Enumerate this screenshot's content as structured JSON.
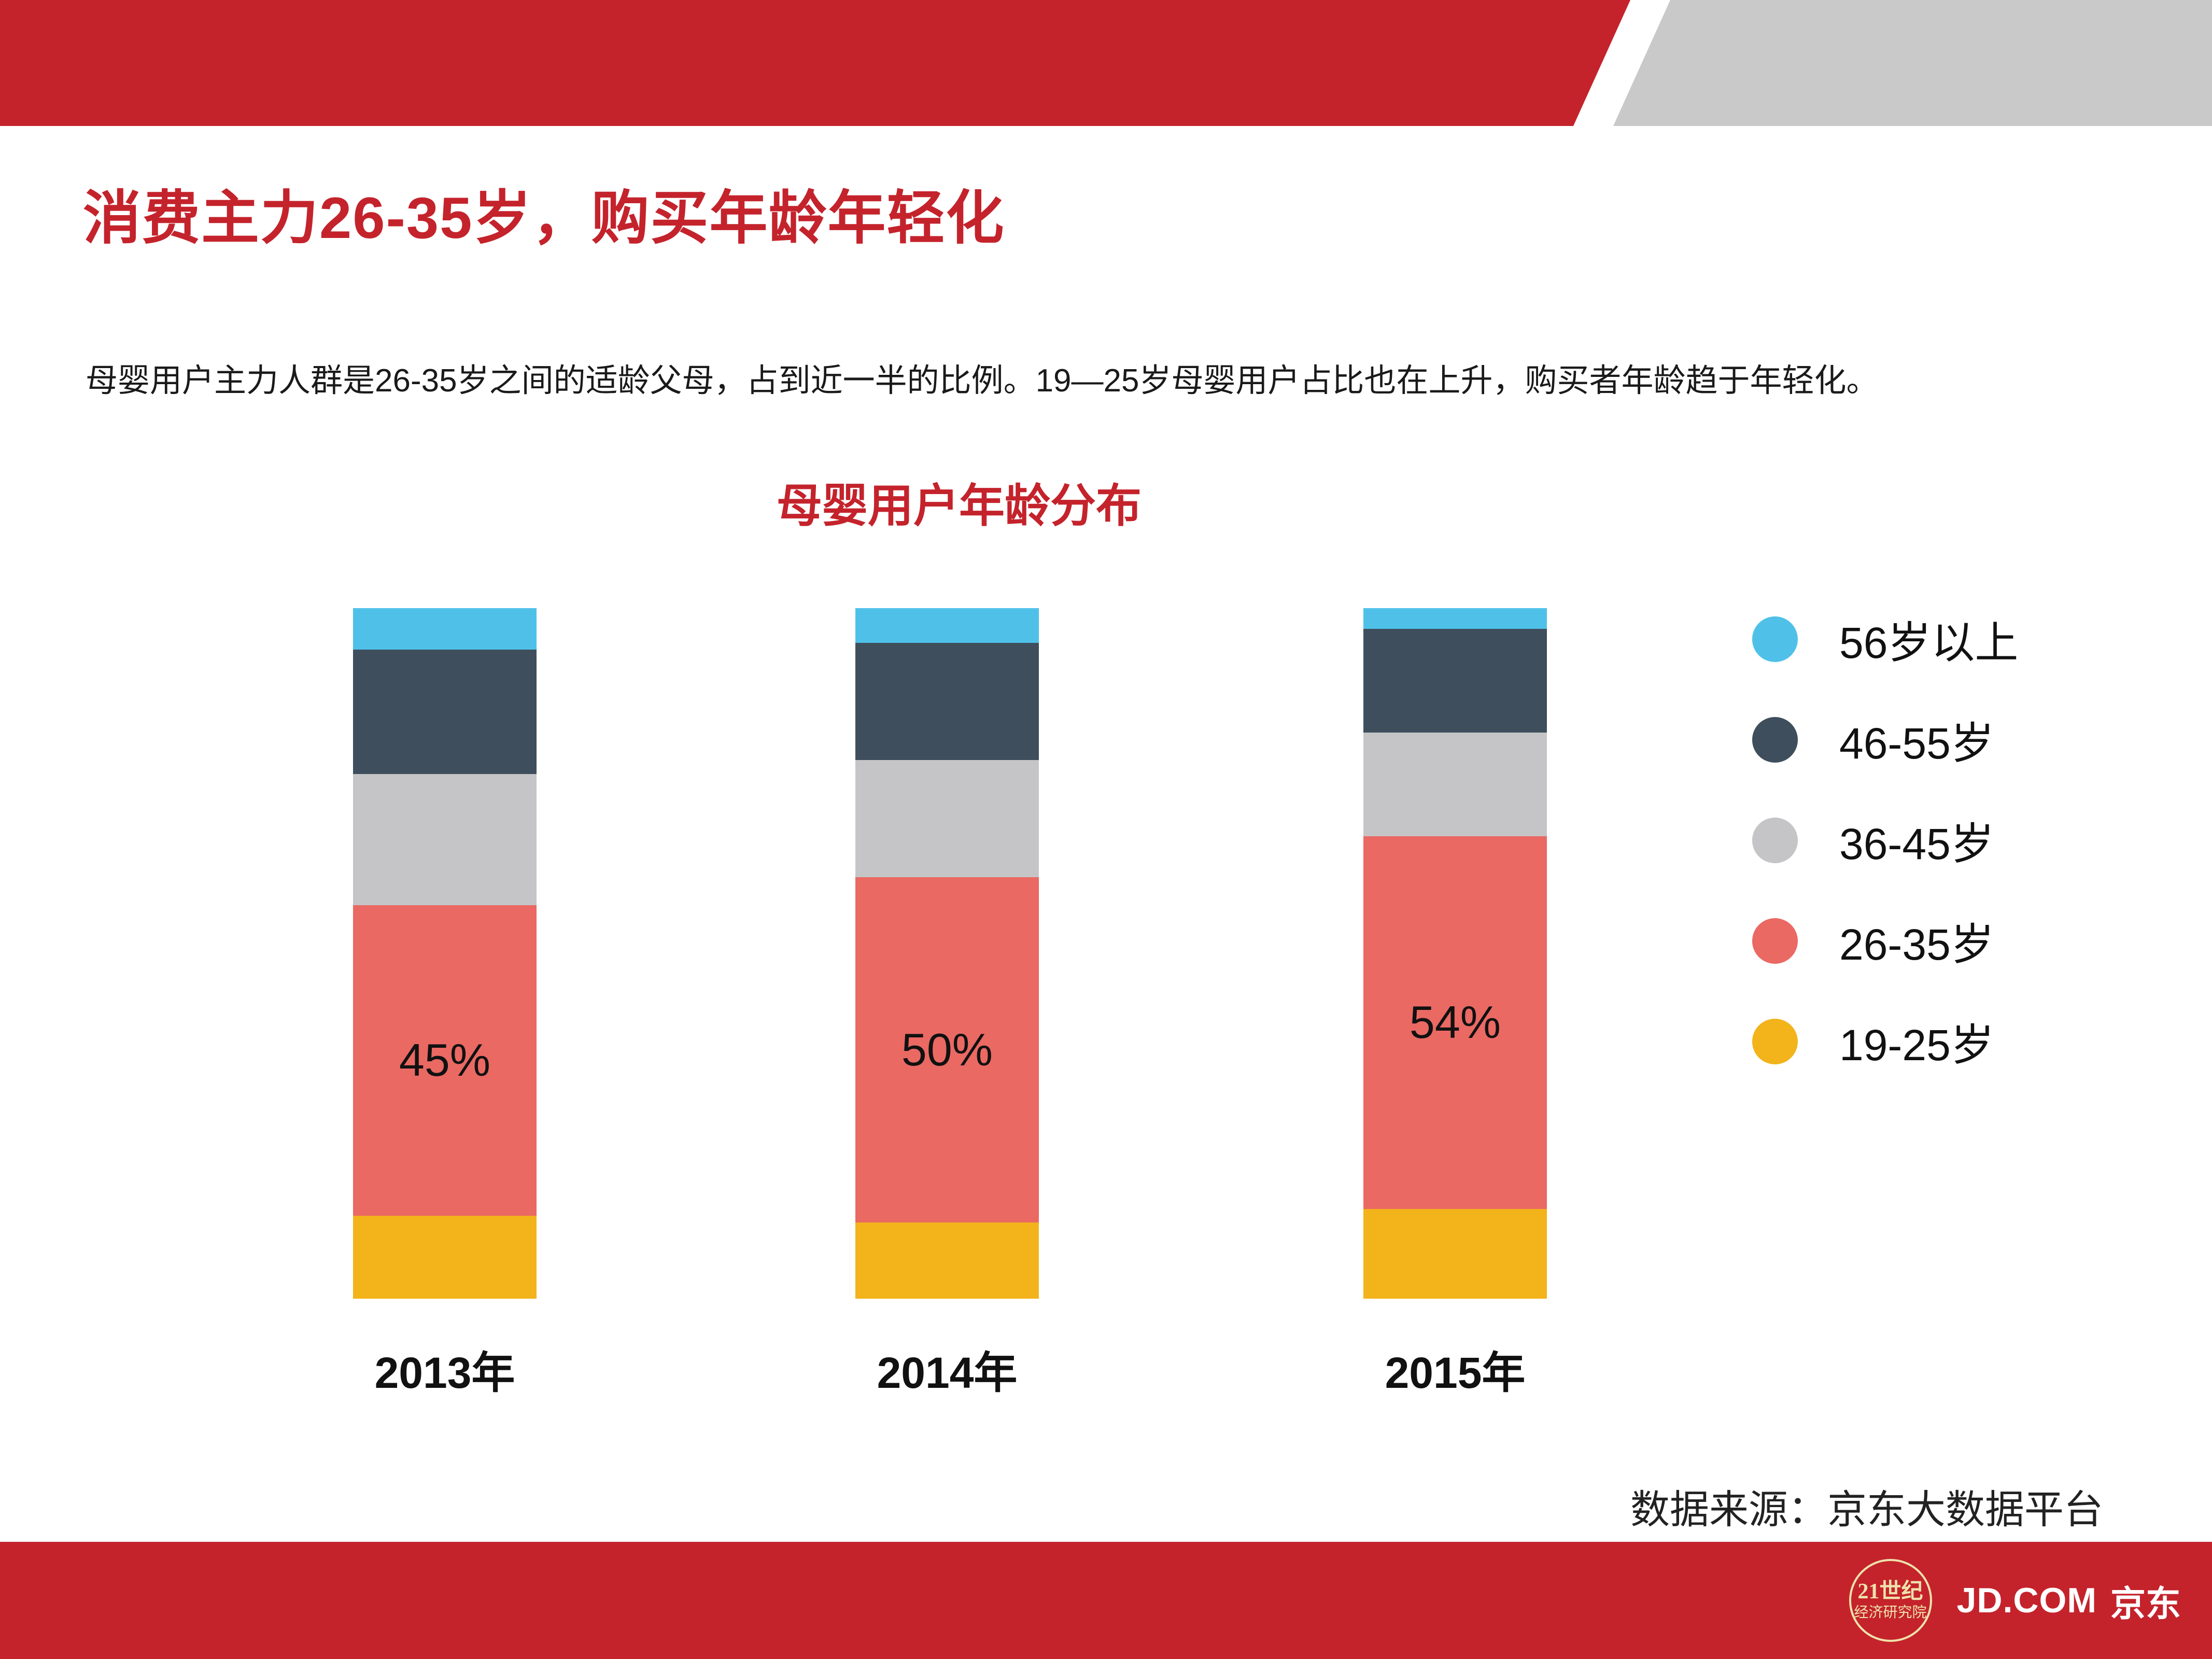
{
  "slide": {
    "title": "消费主力26-35岁，购买年龄年轻化",
    "subtitle": "母婴用户主力人群是26-35岁之间的适龄父母，占到近一半的比例。19—25岁母婴用户占比也在上升，购买者年龄趋于年轻化。",
    "source": "数据来源：京东大数据平台"
  },
  "footer": {
    "seal_line1": "21世纪",
    "seal_line2": "经济研究院",
    "jd_en": "JD.COM",
    "jd_cn": "京东"
  },
  "colors": {
    "brand_red": "#C4232C",
    "header_gray": "#C9C9C9"
  },
  "chart_data": {
    "type": "bar",
    "stacked": true,
    "title": "母婴用户年龄分布",
    "categories": [
      "2013年",
      "2014年",
      "2015年"
    ],
    "series": [
      {
        "name": "19-25岁",
        "color": "#F2B31B",
        "values": [
          12,
          11,
          13
        ]
      },
      {
        "name": "26-35岁",
        "color": "#EA6963",
        "values": [
          45,
          50,
          54
        ],
        "data_labels": [
          "45%",
          "50%",
          "54%"
        ]
      },
      {
        "name": "36-45岁",
        "color": "#C5C5C7",
        "values": [
          19,
          17,
          15
        ]
      },
      {
        "name": "46-55岁",
        "color": "#3E4E5C",
        "values": [
          18,
          17,
          15
        ]
      },
      {
        "name": "56岁以上",
        "color": "#4FC1E9",
        "values": [
          6,
          5,
          3
        ]
      }
    ],
    "unit": "percent",
    "ylim": [
      0,
      100
    ],
    "grid": false,
    "legend_position": "right",
    "legend_order": [
      "56岁以上",
      "46-55岁",
      "36-45岁",
      "26-35岁",
      "19-25岁"
    ]
  }
}
